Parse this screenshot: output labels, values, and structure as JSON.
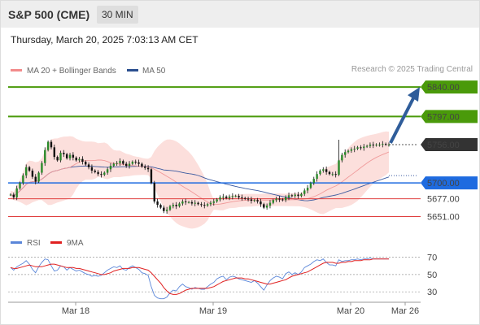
{
  "header": {
    "title": "S&P 500 (CME)",
    "interval": "30 MIN"
  },
  "datetime": "Thursday, March 20, 2025 7:03:13 AM CET",
  "source": "Research © 2025 Trading Central",
  "legend": {
    "price": [
      {
        "label": "MA 20 + Bollinger Bands",
        "color": "#f28b8b"
      },
      {
        "label": "MA 50",
        "color": "#2b4f8f"
      }
    ],
    "rsi": [
      {
        "label": "RSI",
        "color": "#5a86d9"
      },
      {
        "label": "9MA",
        "color": "#e02020"
      }
    ]
  },
  "x_labels": [
    "Mar 18",
    "Mar 19",
    "Mar 20",
    "Mar 26"
  ],
  "chart_data": [
    {
      "type": "candlestick",
      "ylim": [
        5635,
        5852
      ],
      "levels": [
        {
          "value": 5840.0,
          "label": "5840.00",
          "kind": "target",
          "color": "#4a9a0a"
        },
        {
          "value": 5797.0,
          "label": "5797.00",
          "kind": "resistance",
          "color": "#4a9a0a"
        },
        {
          "value": 5756.0,
          "label": "5756.00",
          "kind": "last",
          "color": "#333333"
        },
        {
          "value": 5700.0,
          "label": "5700.00",
          "kind": "pivot",
          "color": "#1e6be0"
        },
        {
          "value": 5677.0,
          "label": "5677.00",
          "kind": "support",
          "color": "#e04040"
        },
        {
          "value": 5651.0,
          "label": "5651.00",
          "kind": "support",
          "color": "#e04040"
        }
      ],
      "close": [
        5683,
        5679,
        5692,
        5700,
        5711,
        5723,
        5718,
        5709,
        5702,
        5715,
        5729,
        5748,
        5760,
        5752,
        5738,
        5733,
        5744,
        5742,
        5736,
        5741,
        5737,
        5733,
        5735,
        5731,
        5727,
        5723,
        5718,
        5716,
        5713,
        5712,
        5715,
        5720,
        5725,
        5728,
        5729,
        5732,
        5728,
        5725,
        5728,
        5731,
        5730,
        5728,
        5724,
        5722,
        5720,
        5700,
        5673,
        5668,
        5664,
        5659,
        5661,
        5666,
        5668,
        5666,
        5670,
        5673,
        5672,
        5672,
        5670,
        5671,
        5669,
        5668,
        5667,
        5669,
        5671,
        5673,
        5676,
        5679,
        5680,
        5678,
        5680,
        5681,
        5681,
        5679,
        5678,
        5677,
        5676,
        5674,
        5675,
        5673,
        5669,
        5664,
        5667,
        5671,
        5675,
        5677,
        5676,
        5675,
        5679,
        5682,
        5681,
        5683,
        5681,
        5684,
        5689,
        5693,
        5700,
        5706,
        5713,
        5718,
        5720,
        5716,
        5713,
        5713,
        5712,
        5733,
        5741,
        5745,
        5747,
        5749,
        5750,
        5752,
        5751,
        5753,
        5754,
        5756,
        5755,
        5756,
        5756,
        5757,
        5756,
        5756
      ]
    },
    {
      "type": "line",
      "name": "RSI",
      "ylim": [
        18,
        78
      ],
      "y_ticks": [
        70,
        50,
        30
      ],
      "series": [
        {
          "name": "RSI",
          "values": [
            58,
            55,
            59,
            61,
            63,
            66,
            62,
            56,
            52,
            59,
            64,
            68,
            67,
            60,
            54,
            55,
            60,
            59,
            55,
            58,
            56,
            54,
            55,
            53,
            51,
            50,
            48,
            49,
            48,
            49,
            52,
            55,
            57,
            59,
            58,
            60,
            56,
            55,
            58,
            60,
            58,
            56,
            52,
            51,
            49,
            36,
            26,
            23,
            22,
            22,
            24,
            29,
            32,
            31,
            36,
            39,
            36,
            35,
            33,
            35,
            34,
            33,
            33,
            36,
            39,
            41,
            45,
            47,
            48,
            44,
            47,
            48,
            47,
            45,
            44,
            43,
            42,
            41,
            43,
            40,
            36,
            32,
            38,
            43,
            46,
            48,
            47,
            45,
            51,
            53,
            50,
            52,
            50,
            53,
            58,
            60,
            62,
            65,
            67,
            66,
            68,
            64,
            61,
            61,
            60,
            67,
            65,
            66,
            66,
            67,
            67,
            68,
            67,
            68,
            68,
            69,
            68,
            68,
            68,
            68,
            68,
            68
          ]
        },
        {
          "name": "9MA",
          "values": [
            58,
            57,
            57,
            58,
            59,
            60,
            61,
            60,
            59,
            59,
            59,
            60,
            61,
            62,
            62,
            61,
            60,
            59,
            58,
            58,
            58,
            57,
            57,
            56,
            55,
            54,
            53,
            52,
            51,
            50,
            50,
            51,
            52,
            54,
            55,
            56,
            57,
            57,
            57,
            58,
            58,
            58,
            57,
            56,
            55,
            52,
            48,
            44,
            40,
            35,
            31,
            28,
            27,
            27,
            28,
            30,
            32,
            33,
            34,
            34,
            34,
            34,
            34,
            34,
            35,
            36,
            38,
            40,
            42,
            43,
            44,
            45,
            46,
            46,
            46,
            45,
            45,
            44,
            43,
            42,
            41,
            40,
            39,
            39,
            40,
            41,
            42,
            43,
            44,
            46,
            48,
            49,
            50,
            51,
            52,
            53,
            55,
            57,
            59,
            61,
            63,
            64,
            64,
            64,
            63,
            63,
            64,
            64,
            65,
            65,
            66,
            66,
            66,
            67,
            67,
            67,
            68,
            68,
            68,
            68,
            68,
            68
          ]
        }
      ]
    }
  ]
}
